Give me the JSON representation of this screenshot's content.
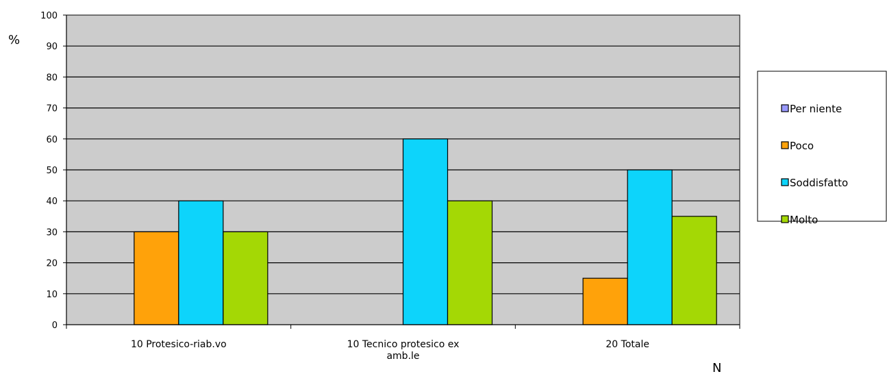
{
  "chart_data": {
    "type": "bar",
    "categories": [
      "10 Protesico-riab.vo",
      "10 Tecnico protesico ex amb.le",
      "20 Totale"
    ],
    "series": [
      {
        "name": "Per niente",
        "color": "#9999ff",
        "values": [
          0,
          0,
          0
        ]
      },
      {
        "name": "Poco",
        "color": "#ffa20a",
        "values": [
          30,
          0,
          15
        ]
      },
      {
        "name": "Soddisfatto",
        "color": "#0dd4fb",
        "values": [
          40,
          60,
          50
        ]
      },
      {
        "name": "Molto",
        "color": "#a4d805",
        "values": [
          30,
          40,
          35
        ]
      }
    ],
    "ylabel": "%",
    "xlabel": "N",
    "ylim": [
      0,
      100
    ],
    "yticks": [
      0,
      10,
      20,
      30,
      40,
      50,
      60,
      70,
      80,
      90,
      100
    ],
    "grid": true,
    "plot_background": "#cccccc",
    "legend_position": "right"
  }
}
